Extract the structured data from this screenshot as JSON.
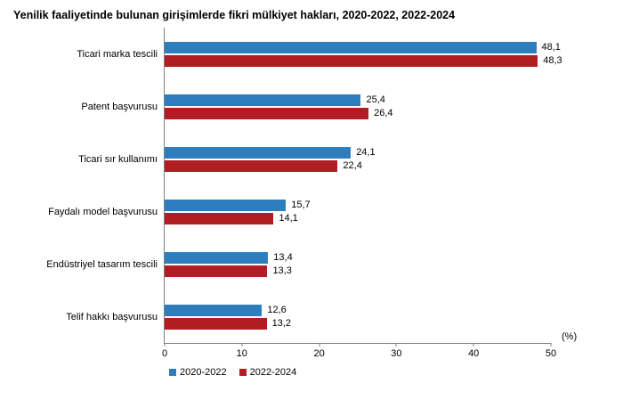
{
  "chart_data": {
    "type": "bar",
    "orientation": "horizontal",
    "title": "Yenilik faaliyetinde bulunan girişimlerde fikri mülkiyet hakları, 2020-2022, 2022-2024",
    "categories": [
      "Ticari marka tescili",
      "Patent başvurusu",
      "Ticari sır kullanımı",
      "Faydalı model başvurusu",
      "Endüstriyel tasarım tescili",
      "Telif hakkı başvurusu"
    ],
    "series": [
      {
        "name": "2020-2022",
        "color": "#2E7EBD",
        "values": [
          48.1,
          25.4,
          24.1,
          15.7,
          13.4,
          12.6
        ],
        "labels": [
          "48,1",
          "25,4",
          "24,1",
          "15,7",
          "13,4",
          "12,6"
        ]
      },
      {
        "name": "2022-2024",
        "color": "#B01E23",
        "values": [
          48.3,
          26.4,
          22.4,
          14.1,
          13.3,
          13.2
        ],
        "labels": [
          "48,3",
          "26,4",
          "22,4",
          "14,1",
          "13,3",
          "13,2"
        ]
      }
    ],
    "xlim": [
      0,
      50
    ],
    "x_ticks": [
      "0",
      "10",
      "20",
      "30",
      "40",
      "50"
    ],
    "axis_unit": "(%)",
    "axis_color": "#808080",
    "grid": false,
    "legend_position": "bottom",
    "value_labels_shown": true
  }
}
